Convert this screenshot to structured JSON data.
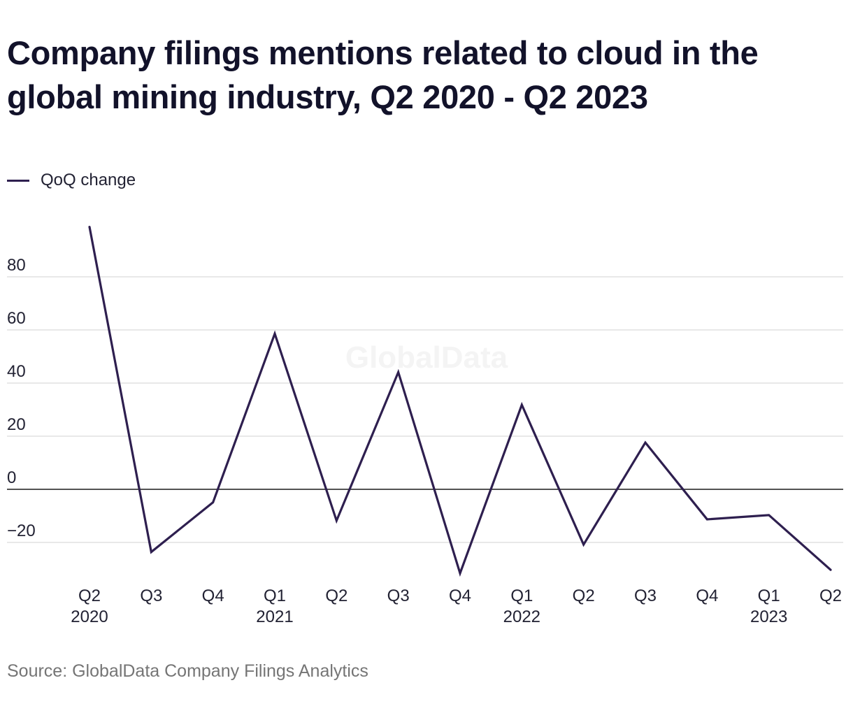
{
  "title": "Company filings mentions related to cloud in the global mining industry, Q2 2020 - Q2 2023",
  "watermark": "GlobalData",
  "source": "Source: GlobalData Company Filings Analytics",
  "colors": {
    "line": "#2e1f4f",
    "grid": "#d9d9d9",
    "zero_line": "#1a1a1a"
  },
  "chart_data": {
    "type": "line",
    "title": "Company filings mentions related to cloud in the global mining industry, Q2 2020 - Q2 2023",
    "xlabel": "",
    "ylabel": "",
    "ylim": [
      -30,
      100
    ],
    "yticks": [
      80,
      60,
      40,
      20,
      0,
      -20
    ],
    "ytick_labels": [
      "80",
      "60",
      "40",
      "20",
      "0",
      "−20"
    ],
    "grid": true,
    "legend": "top-left",
    "categories": [
      "Q2 2020",
      "Q3 2020",
      "Q4 2020",
      "Q1 2021",
      "Q2 2021",
      "Q3 2021",
      "Q4 2021",
      "Q1 2022",
      "Q2 2022",
      "Q3 2022",
      "Q4 2022",
      "Q1 2023",
      "Q2 2023"
    ],
    "tick_labels": [
      {
        "quarter": "Q2",
        "year": "2020"
      },
      {
        "quarter": "Q3",
        "year": ""
      },
      {
        "quarter": "Q4",
        "year": ""
      },
      {
        "quarter": "Q1",
        "year": "2021"
      },
      {
        "quarter": "Q2",
        "year": ""
      },
      {
        "quarter": "Q3",
        "year": ""
      },
      {
        "quarter": "Q4",
        "year": ""
      },
      {
        "quarter": "Q1",
        "year": "2022"
      },
      {
        "quarter": "Q2",
        "year": ""
      },
      {
        "quarter": "Q3",
        "year": ""
      },
      {
        "quarter": "Q4",
        "year": ""
      },
      {
        "quarter": "Q1",
        "year": "2023"
      },
      {
        "quarter": "Q2",
        "year": ""
      }
    ],
    "series": [
      {
        "name": "QoQ change",
        "values": [
          98.8,
          -23.6,
          -4.9,
          58.6,
          -11.8,
          44.1,
          -31.6,
          31.8,
          -20.8,
          17.6,
          -11.3,
          -9.7,
          -30.3
        ]
      }
    ]
  }
}
